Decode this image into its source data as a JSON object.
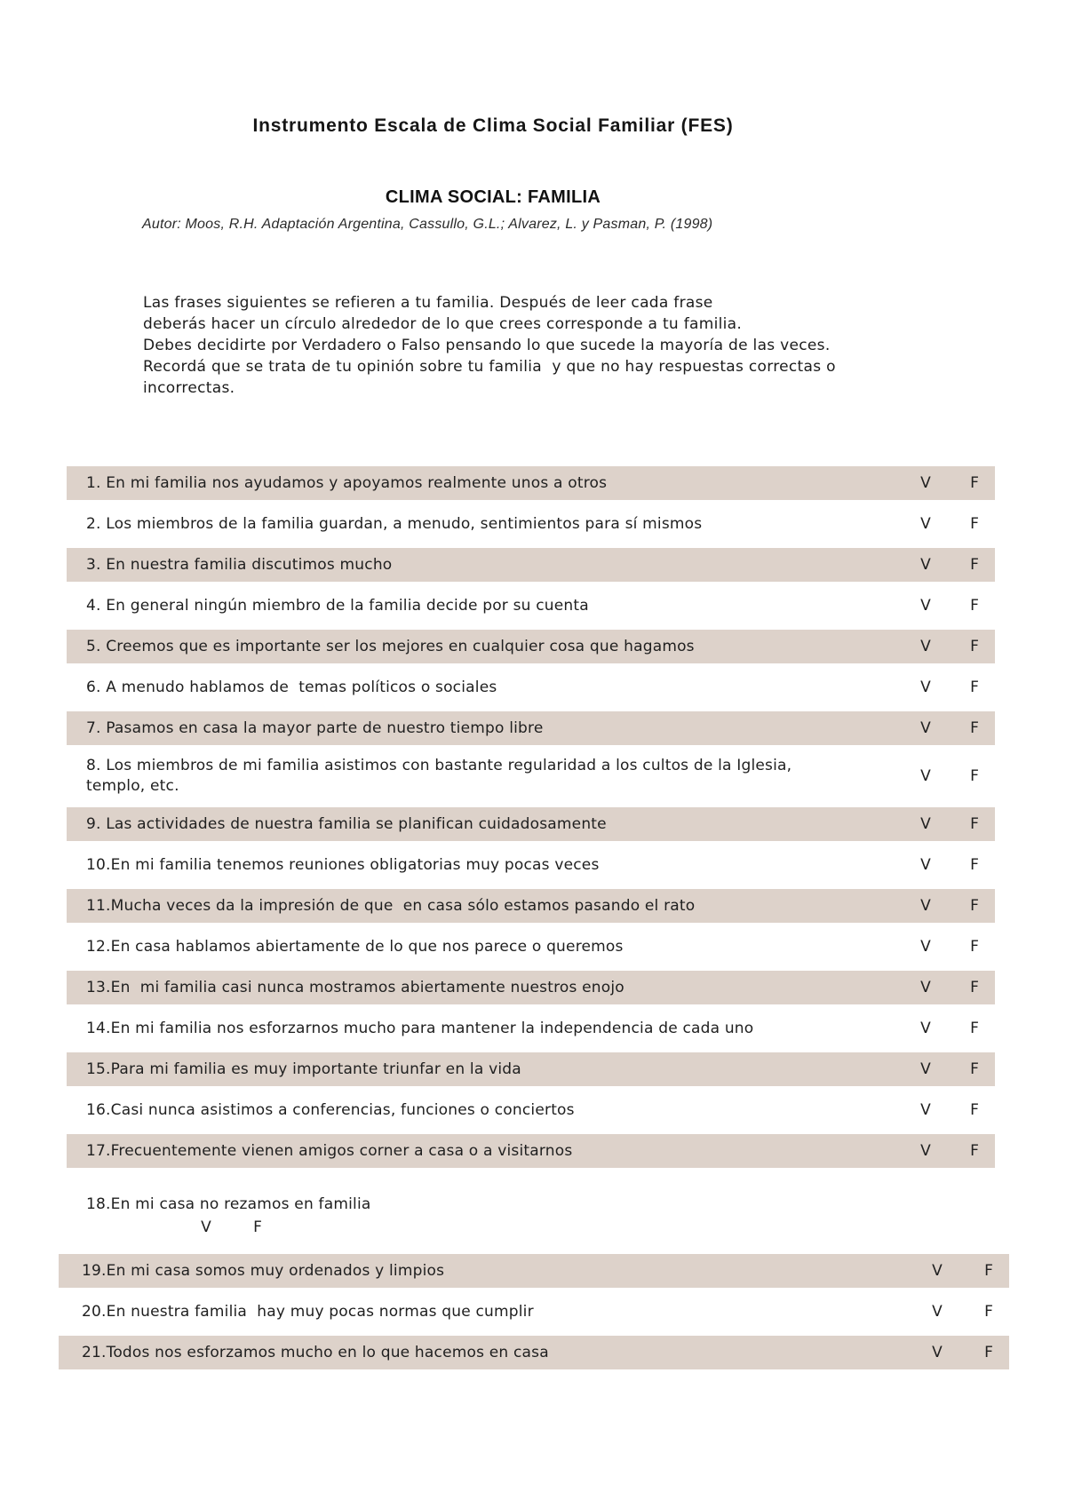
{
  "page": {
    "title": "Instrumento Escala de Clima Social Familiar (FES)",
    "subtitle": "CLIMA SOCIAL: FAMILIA",
    "author": "Autor: Moos, R.H. Adaptación Argentina, Cassullo, G.L.; Alvarez, L. y Pasman, P. (1998)",
    "instructions": [
      "Las frases siguientes se refieren a tu familia. Después de leer cada frase",
      "deberás hacer un círculo alrededor de lo que crees corresponde a tu familia.",
      "Debes decidirte por Verdadero o Falso pensando lo que sucede la mayoría de las veces.",
      "Recordá que se trata de tu opinión sobre tu familia  y que no hay respuestas correctas o",
      "incorrectas."
    ]
  },
  "options": {
    "true_label": "V",
    "false_label": "F"
  },
  "colors": {
    "band": "#ddd2ca",
    "text": "#1f1f1f"
  },
  "items": [
    {
      "text": "1. En mi familia nos ayudamos y apoyamos realmente unos a otros",
      "shaded": true,
      "wide": false,
      "standalone": false
    },
    {
      "text": "2. Los miembros de la familia guardan, a menudo, sentimientos para sí mismos",
      "shaded": false,
      "wide": false,
      "standalone": false
    },
    {
      "text": "3. En nuestra familia discutimos mucho",
      "shaded": true,
      "wide": false,
      "standalone": false
    },
    {
      "text": "4. En general ningún miembro de la familia decide por su cuenta",
      "shaded": false,
      "wide": false,
      "standalone": false
    },
    {
      "text": "5. Creemos que es importante ser los mejores en cualquier cosa que hagamos",
      "shaded": true,
      "wide": false,
      "standalone": false
    },
    {
      "text": "6. A menudo hablamos de  temas políticos o sociales",
      "shaded": false,
      "wide": false,
      "standalone": false
    },
    {
      "text": "7. Pasamos en casa la mayor parte de nuestro tiempo libre",
      "shaded": true,
      "wide": false,
      "standalone": false
    },
    {
      "text": "8. Los miembros de mi familia asistimos con bastante regularidad a los cultos de la Iglesia, templo, etc.",
      "shaded": false,
      "wide": false,
      "standalone": false
    },
    {
      "text": "9. Las actividades de nuestra familia se planifican cuidadosamente",
      "shaded": true,
      "wide": false,
      "standalone": false
    },
    {
      "text": "10.En mi familia tenemos reuniones obligatorias muy pocas veces",
      "shaded": false,
      "wide": false,
      "standalone": false
    },
    {
      "text": "11.Mucha veces da la impresión de que  en casa sólo estamos pasando el rato",
      "shaded": true,
      "wide": false,
      "standalone": false
    },
    {
      "text": "12.En casa hablamos abiertamente de lo que nos parece o queremos",
      "shaded": false,
      "wide": false,
      "standalone": false
    },
    {
      "text": "13.En  mi familia casi nunca mostramos abiertamente nuestros enojo",
      "shaded": true,
      "wide": false,
      "standalone": false
    },
    {
      "text": "14.En mi familia nos esforzarnos mucho para mantener la independencia de cada uno",
      "shaded": false,
      "wide": false,
      "standalone": false
    },
    {
      "text": "15.Para mi familia es muy importante triunfar en la vida",
      "shaded": true,
      "wide": false,
      "standalone": false
    },
    {
      "text": "16.Casi nunca asistimos a conferencias, funciones o conciertos",
      "shaded": false,
      "wide": false,
      "standalone": false
    },
    {
      "text": "17.Frecuentemente vienen amigos corner a casa o a visitarnos",
      "shaded": true,
      "wide": false,
      "standalone": false
    },
    {
      "text": "18.En mi casa no rezamos en familia",
      "shaded": false,
      "wide": false,
      "standalone": true
    },
    {
      "text": "19.En mi casa somos muy ordenados y limpios",
      "shaded": true,
      "wide": true,
      "standalone": false
    },
    {
      "text": "20.En nuestra familia  hay muy pocas normas que cumplir",
      "shaded": false,
      "wide": true,
      "standalone": false
    },
    {
      "text": "21.Todos nos esforzamos mucho en lo que hacemos en casa",
      "shaded": true,
      "wide": true,
      "standalone": false
    }
  ]
}
